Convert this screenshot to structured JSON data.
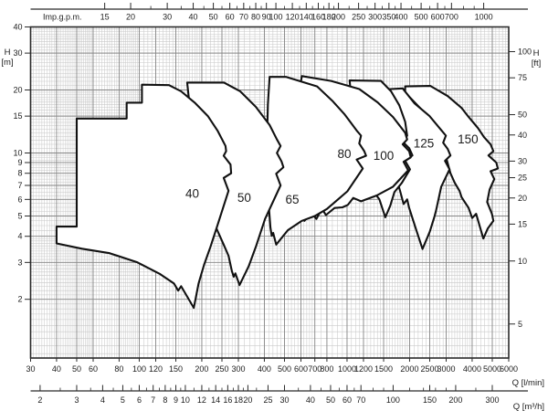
{
  "chart_data": {
    "type": "area",
    "title": "",
    "scale": "log-log",
    "x_axis_bottom": {
      "label": "Q [l/min]",
      "range": [
        30,
        6000
      ],
      "ticks": [
        30,
        40,
        50,
        60,
        80,
        100,
        120,
        150,
        200,
        250,
        300,
        400,
        500,
        600,
        700,
        800,
        1000,
        1200,
        1500,
        2000,
        2500,
        3000,
        4000,
        5000,
        6000
      ]
    },
    "x_axis_bottom2": {
      "label": "Q [m³/h]",
      "unit_to_lmin": 16.6667,
      "ticks": [
        2,
        3,
        4,
        5,
        6,
        7,
        8,
        9,
        10,
        12,
        14,
        16,
        18,
        20,
        25,
        30,
        40,
        50,
        60,
        70,
        100,
        150,
        200,
        300
      ],
      "minor_ticks": [
        2.5,
        3.5,
        4.5,
        5.5,
        6.5,
        7.5,
        8.5,
        9.5,
        11,
        13,
        15,
        17,
        19,
        22,
        35,
        45,
        55,
        65,
        80,
        90,
        120,
        140,
        160,
        180,
        250
      ]
    },
    "x_axis_top": {
      "label": "Imp.g.p.m.",
      "unit_to_lmin": 4.54609,
      "ticks": [
        15,
        20,
        30,
        40,
        50,
        60,
        70,
        80,
        90,
        100,
        120,
        140,
        160,
        180,
        200,
        250,
        300,
        350,
        400,
        500,
        600,
        700,
        1000
      ],
      "minor_ticks": [
        25,
        35,
        45,
        55,
        65,
        75,
        85,
        110,
        130,
        150,
        170,
        190,
        225,
        275,
        325,
        375,
        450,
        550,
        650,
        800,
        900
      ]
    },
    "y_axis_left": {
      "label_line1": "H",
      "label_line2": "[m]",
      "range": [
        1.06,
        40
      ],
      "ticks": [
        40,
        30,
        20,
        15,
        10,
        9,
        8,
        7,
        6,
        5,
        4,
        3,
        2
      ]
    },
    "y_axis_right": {
      "label_line1": "H",
      "label_line2": "[ft]",
      "unit_to_m": 0.3048,
      "ticks": [
        100,
        75,
        50,
        40,
        30,
        25,
        20,
        15,
        10,
        5
      ]
    },
    "grid": {
      "x_minor_ranges": [
        [
          30,
          60,
          1
        ],
        [
          60,
          100,
          2
        ],
        [
          100,
          200,
          5
        ],
        [
          200,
          300,
          10
        ],
        [
          300,
          700,
          20
        ],
        [
          700,
          1000,
          50
        ],
        [
          1000,
          2000,
          50
        ],
        [
          2000,
          4000,
          100
        ],
        [
          4000,
          6000,
          200
        ]
      ],
      "y_minor_ranges": [
        [
          1.1,
          2,
          0.1
        ],
        [
          2,
          4,
          0.1
        ],
        [
          4,
          10,
          0.25
        ],
        [
          10,
          20,
          0.5
        ],
        [
          20,
          40,
          1
        ]
      ]
    },
    "series": [
      {
        "name": "150",
        "label": "150",
        "label_pos": [
          3820,
          11.6
        ],
        "points": [
          [
            1905,
            20.8
          ],
          [
            2520,
            20.9
          ],
          [
            3053,
            18.7
          ],
          [
            3558,
            16.4
          ],
          [
            3849,
            14.85
          ],
          [
            4266,
            13.15
          ],
          [
            4566,
            11.9
          ],
          [
            4905,
            11.0
          ],
          [
            5061,
            10.2
          ],
          [
            4791,
            9.73
          ],
          [
            5226,
            9.0
          ],
          [
            5319,
            8.43
          ],
          [
            4905,
            8.18
          ],
          [
            5115,
            7.5
          ],
          [
            4855,
            6.7
          ],
          [
            4724,
            5.83
          ],
          [
            4980,
            5.12
          ],
          [
            5061,
            4.74
          ],
          [
            4760,
            4.36
          ],
          [
            4530,
            3.9
          ],
          [
            4180,
            5.12
          ],
          [
            4004,
            4.89
          ],
          [
            3849,
            5.46
          ],
          [
            3558,
            6.15
          ],
          [
            3478,
            6.6
          ],
          [
            3300,
            7.2
          ],
          [
            3146,
            8.0
          ],
          [
            3000,
            9.5
          ],
          [
            2800,
            12
          ],
          [
            2600,
            14
          ],
          [
            2300,
            16
          ],
          [
            2000,
            18.5
          ],
          [
            1905,
            19.5
          ]
        ]
      },
      {
        "name": "125",
        "label": "125",
        "label_pos": [
          2340,
          11.1
        ],
        "points": [
          [
            1489,
            20.1
          ],
          [
            1853,
            20.35
          ],
          [
            2106,
            17.3
          ],
          [
            2496,
            15.0
          ],
          [
            2841,
            12.87
          ],
          [
            2990,
            12.1
          ],
          [
            2900,
            11.2
          ],
          [
            3053,
            10.45
          ],
          [
            3146,
            9.73
          ],
          [
            2960,
            9.17
          ],
          [
            3115,
            8.35
          ],
          [
            2841,
            6.9
          ],
          [
            2680,
            5.3
          ],
          [
            2624,
            4.9
          ],
          [
            2500,
            4.2
          ],
          [
            2307,
            3.48
          ],
          [
            2141,
            4.36
          ],
          [
            1990,
            5.46
          ],
          [
            1947,
            6.0
          ],
          [
            1872,
            5.7
          ],
          [
            1800,
            6.6
          ],
          [
            1700,
            8
          ],
          [
            1600,
            11
          ],
          [
            1520,
            15
          ],
          [
            1489,
            18
          ]
        ]
      },
      {
        "name": "100",
        "label": "100",
        "label_pos": [
          1500,
          9.7
        ],
        "points": [
          [
            1029,
            22.2
          ],
          [
            1458,
            22.1
          ],
          [
            1629,
            19.7
          ],
          [
            1785,
            16.9
          ],
          [
            1905,
            14.1
          ],
          [
            1947,
            12.1
          ],
          [
            1853,
            11.3
          ],
          [
            1990,
            10.55
          ],
          [
            2065,
            9.73
          ],
          [
            1905,
            9.17
          ],
          [
            2010,
            8.35
          ],
          [
            1836,
            7.2
          ],
          [
            1690,
            6.5
          ],
          [
            1615,
            5.6
          ],
          [
            1529,
            4.93
          ],
          [
            1432,
            6.0
          ],
          [
            1325,
            6.64
          ],
          [
            1255,
            7.5
          ],
          [
            1150,
            9
          ],
          [
            1100,
            12
          ],
          [
            1060,
            16
          ],
          [
            1040,
            20
          ]
        ]
      },
      {
        "name": "80",
        "label": "80",
        "label_pos": [
          970,
          9.9
        ],
        "points": [
          [
            606,
            23.3
          ],
          [
            838,
            22.1
          ],
          [
            1146,
            20.2
          ],
          [
            1404,
            17.45
          ],
          [
            1665,
            14.85
          ],
          [
            1905,
            12.5
          ],
          [
            1947,
            11.6
          ],
          [
            1853,
            11.0
          ],
          [
            1990,
            10.2
          ],
          [
            2026,
            9.53
          ],
          [
            1872,
            9.07
          ],
          [
            1968,
            8.26
          ],
          [
            1665,
            6.9
          ],
          [
            1390,
            6.27
          ],
          [
            1168,
            5.88
          ],
          [
            1070,
            6.1
          ],
          [
            1010,
            5.65
          ],
          [
            950,
            5.5
          ],
          [
            871,
            5.46
          ],
          [
            791,
            5.05
          ],
          [
            757,
            5.43
          ],
          [
            712,
            4.84
          ],
          [
            669,
            5.24
          ],
          [
            624,
            4.74
          ],
          [
            560,
            5.2
          ],
          [
            540,
            8
          ],
          [
            560,
            12
          ],
          [
            580,
            18
          ]
        ]
      },
      {
        "name": "65",
        "label": "65",
        "label_pos": [
          545,
          6.0
        ],
        "points": [
          [
            424,
            23.1
          ],
          [
            510,
            23.1
          ],
          [
            718,
            20.8
          ],
          [
            847,
            17.8
          ],
          [
            973,
            15.3
          ],
          [
            1113,
            12.8
          ],
          [
            1168,
            12.1
          ],
          [
            1145,
            11.1
          ],
          [
            1210,
            10.2
          ],
          [
            1235,
            9.7
          ],
          [
            1113,
            9.3
          ],
          [
            1190,
            8.43
          ],
          [
            1003,
            6.56
          ],
          [
            905,
            6.0
          ],
          [
            800,
            5.4
          ],
          [
            700,
            5.0
          ],
          [
            606,
            4.74
          ],
          [
            519,
            4.28
          ],
          [
            456,
            3.65
          ],
          [
            441,
            4.15
          ],
          [
            434,
            4.02
          ],
          [
            428,
            4.4
          ],
          [
            420,
            5.6
          ],
          [
            415,
            7.6
          ],
          [
            412,
            11.7
          ],
          [
            416,
            17
          ]
        ]
      },
      {
        "name": "50",
        "label": "50",
        "label_pos": [
          320,
          6.1
        ],
        "points": [
          [
            170,
            21.7
          ],
          [
            256,
            21.7
          ],
          [
            306,
            19.7
          ],
          [
            364,
            16.6
          ],
          [
            424,
            13.6
          ],
          [
            460,
            11.6
          ],
          [
            479,
            10.8
          ],
          [
            460,
            10.0
          ],
          [
            484,
            9.1
          ],
          [
            494,
            8.55
          ],
          [
            456,
            7.96
          ],
          [
            479,
            7.0
          ],
          [
            403,
            4.84
          ],
          [
            364,
            3.56
          ],
          [
            336,
            2.87
          ],
          [
            304,
            2.34
          ],
          [
            290,
            2.66
          ],
          [
            285,
            2.56
          ],
          [
            279,
            2.74
          ],
          [
            269,
            3.23
          ],
          [
            255,
            3.65
          ],
          [
            232,
            4.5
          ],
          [
            220,
            6.15
          ],
          [
            200,
            9.0
          ],
          [
            188,
            11.9
          ],
          [
            175,
            16.6
          ]
        ]
      },
      {
        "name": "40",
        "label": "40",
        "label_pos": [
          180,
          6.4
        ],
        "points": [
          [
            40,
            3.7
          ],
          [
            40,
            4.45
          ],
          [
            50,
            4.45
          ],
          [
            50,
            14.6
          ],
          [
            87,
            14.6
          ],
          [
            87,
            17.4
          ],
          [
            103,
            17.4
          ],
          [
            103,
            21.2
          ],
          [
            139,
            21.1
          ],
          [
            159,
            19.7
          ],
          [
            185,
            17.4
          ],
          [
            214,
            15.0
          ],
          [
            238,
            12.8
          ],
          [
            260,
            10.8
          ],
          [
            262,
            10.2
          ],
          [
            255,
            9.7
          ],
          [
            275,
            8.8
          ],
          [
            277,
            8.0
          ],
          [
            255,
            7.6
          ],
          [
            269,
            6.6
          ],
          [
            236,
            4.4
          ],
          [
            220,
            3.56
          ],
          [
            205,
            2.92
          ],
          [
            193,
            2.38
          ],
          [
            183,
            1.82
          ],
          [
            159,
            2.31
          ],
          [
            154,
            2.2
          ],
          [
            147,
            2.38
          ],
          [
            126,
            2.64
          ],
          [
            98,
            3.0
          ],
          [
            72,
            3.32
          ],
          [
            53,
            3.49
          ]
        ]
      }
    ]
  },
  "colors": {
    "background": "#ffffff",
    "grid_minor": "#c9c9c9",
    "grid_major": "#868686",
    "border": "#2a2a2a",
    "envelope_stroke": "#111111",
    "envelope_fill": "#ffffff",
    "text": "#1c1c1c"
  }
}
